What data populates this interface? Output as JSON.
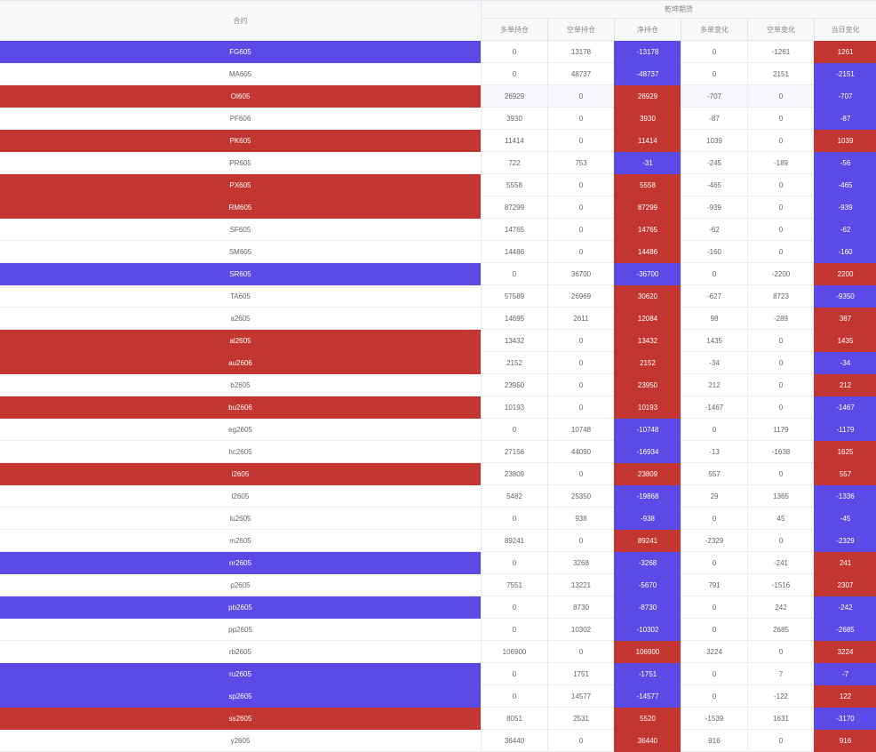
{
  "colors": {
    "positive": "#c23531",
    "negative": "#5b4ae6"
  },
  "header": {
    "contract": "合约",
    "group": "乾坤期货",
    "columns": [
      "多单持仓",
      "空单持仓",
      "净持仓",
      "多单变化",
      "空单变化",
      "当日变化"
    ]
  },
  "rows": [
    {
      "contract": "FG605",
      "long": "0",
      "short": "13178",
      "net": "-13178",
      "long_chg": "0",
      "short_chg": "-1261",
      "day_chg": "1261"
    },
    {
      "contract": "MA605",
      "long": "0",
      "short": "48737",
      "net": "-48737",
      "long_chg": "0",
      "short_chg": "2151",
      "day_chg": "-2151"
    },
    {
      "contract": "OI605",
      "long": "26929",
      "short": "0",
      "net": "26929",
      "long_chg": "-707",
      "short_chg": "0",
      "day_chg": "-707"
    },
    {
      "contract": "PF606",
      "long": "3930",
      "short": "0",
      "net": "3930",
      "long_chg": "-87",
      "short_chg": "0",
      "day_chg": "-87"
    },
    {
      "contract": "PK605",
      "long": "11414",
      "short": "0",
      "net": "11414",
      "long_chg": "1039",
      "short_chg": "0",
      "day_chg": "1039"
    },
    {
      "contract": "PR605",
      "long": "722",
      "short": "753",
      "net": "-31",
      "long_chg": "-245",
      "short_chg": "-189",
      "day_chg": "-56"
    },
    {
      "contract": "PX605",
      "long": "5558",
      "short": "0",
      "net": "5558",
      "long_chg": "-465",
      "short_chg": "0",
      "day_chg": "-465"
    },
    {
      "contract": "RM605",
      "long": "87299",
      "short": "0",
      "net": "87299",
      "long_chg": "-939",
      "short_chg": "0",
      "day_chg": "-939"
    },
    {
      "contract": "SF605",
      "long": "14765",
      "short": "0",
      "net": "14765",
      "long_chg": "-62",
      "short_chg": "0",
      "day_chg": "-62"
    },
    {
      "contract": "SM605",
      "long": "14486",
      "short": "0",
      "net": "14486",
      "long_chg": "-160",
      "short_chg": "0",
      "day_chg": "-160"
    },
    {
      "contract": "SR605",
      "long": "0",
      "short": "36700",
      "net": "-36700",
      "long_chg": "0",
      "short_chg": "-2200",
      "day_chg": "2200"
    },
    {
      "contract": "TA605",
      "long": "57589",
      "short": "26969",
      "net": "30620",
      "long_chg": "-627",
      "short_chg": "8723",
      "day_chg": "-9350"
    },
    {
      "contract": "a2605",
      "long": "14695",
      "short": "2611",
      "net": "12084",
      "long_chg": "98",
      "short_chg": "-289",
      "day_chg": "387"
    },
    {
      "contract": "al2605",
      "long": "13432",
      "short": "0",
      "net": "13432",
      "long_chg": "1435",
      "short_chg": "0",
      "day_chg": "1435"
    },
    {
      "contract": "au2606",
      "long": "2152",
      "short": "0",
      "net": "2152",
      "long_chg": "-34",
      "short_chg": "0",
      "day_chg": "-34"
    },
    {
      "contract": "b2605",
      "long": "23950",
      "short": "0",
      "net": "23950",
      "long_chg": "212",
      "short_chg": "0",
      "day_chg": "212"
    },
    {
      "contract": "bu2606",
      "long": "10193",
      "short": "0",
      "net": "10193",
      "long_chg": "-1467",
      "short_chg": "0",
      "day_chg": "-1467"
    },
    {
      "contract": "eg2605",
      "long": "0",
      "short": "10748",
      "net": "-10748",
      "long_chg": "0",
      "short_chg": "1179",
      "day_chg": "-1179"
    },
    {
      "contract": "hc2605",
      "long": "27156",
      "short": "44090",
      "net": "-16934",
      "long_chg": "-13",
      "short_chg": "-1638",
      "day_chg": "1625"
    },
    {
      "contract": "i2605",
      "long": "23809",
      "short": "0",
      "net": "23809",
      "long_chg": "557",
      "short_chg": "0",
      "day_chg": "557"
    },
    {
      "contract": "l2605",
      "long": "5482",
      "short": "25350",
      "net": "-19868",
      "long_chg": "29",
      "short_chg": "1365",
      "day_chg": "-1336"
    },
    {
      "contract": "lu2605",
      "long": "0",
      "short": "938",
      "net": "-938",
      "long_chg": "0",
      "short_chg": "45",
      "day_chg": "-45"
    },
    {
      "contract": "m2605",
      "long": "89241",
      "short": "0",
      "net": "89241",
      "long_chg": "-2329",
      "short_chg": "0",
      "day_chg": "-2329"
    },
    {
      "contract": "nr2605",
      "long": "0",
      "short": "3268",
      "net": "-3268",
      "long_chg": "0",
      "short_chg": "-241",
      "day_chg": "241"
    },
    {
      "contract": "p2605",
      "long": "7551",
      "short": "13221",
      "net": "-5670",
      "long_chg": "791",
      "short_chg": "-1516",
      "day_chg": "2307"
    },
    {
      "contract": "pb2605",
      "long": "0",
      "short": "8730",
      "net": "-8730",
      "long_chg": "0",
      "short_chg": "242",
      "day_chg": "-242"
    },
    {
      "contract": "pp2605",
      "long": "0",
      "short": "10302",
      "net": "-10302",
      "long_chg": "0",
      "short_chg": "2685",
      "day_chg": "-2685"
    },
    {
      "contract": "rb2605",
      "long": "106900",
      "short": "0",
      "net": "106900",
      "long_chg": "3224",
      "short_chg": "0",
      "day_chg": "3224"
    },
    {
      "contract": "ru2605",
      "long": "0",
      "short": "1751",
      "net": "-1751",
      "long_chg": "0",
      "short_chg": "7",
      "day_chg": "-7"
    },
    {
      "contract": "sp2605",
      "long": "0",
      "short": "14577",
      "net": "-14577",
      "long_chg": "0",
      "short_chg": "-122",
      "day_chg": "122"
    },
    {
      "contract": "ss2605",
      "long": "8051",
      "short": "2531",
      "net": "5520",
      "long_chg": "-1539",
      "short_chg": "1631",
      "day_chg": "-3170"
    },
    {
      "contract": "y2605",
      "long": "36440",
      "short": "0",
      "net": "36440",
      "long_chg": "916",
      "short_chg": "0",
      "day_chg": "916"
    }
  ]
}
